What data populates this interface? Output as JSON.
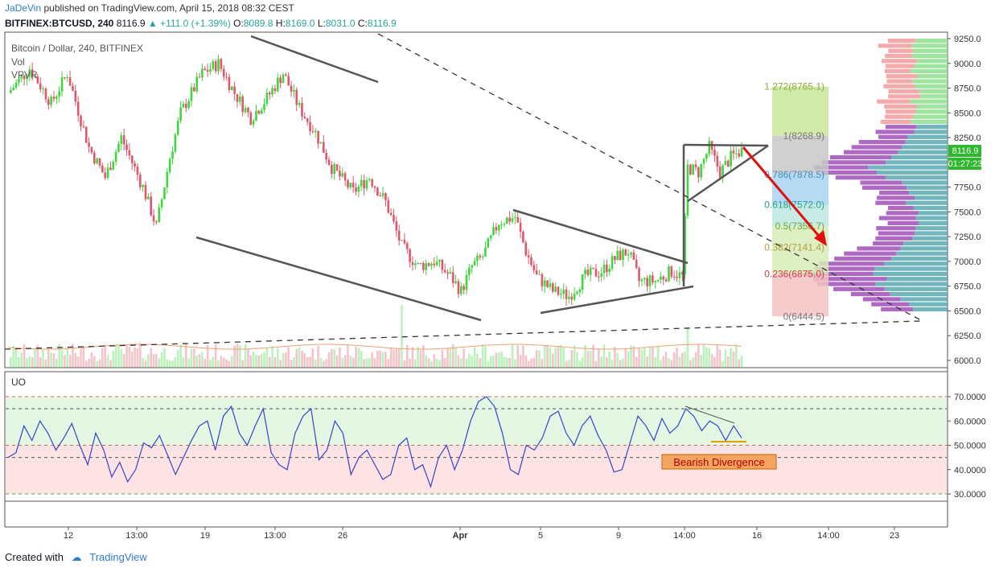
{
  "header": {
    "publisher": "JaDeVin",
    "published_text": "published on TradingView.com, April 15, 2018 08:32 CEST",
    "symbol": "BITFINEX:BTCUSD, 240",
    "last": "8116.9",
    "change": "+111.0 (+1.39%)",
    "o_label": "O:",
    "o": "8089.8",
    "h_label": "H:",
    "h": "8169.0",
    "l_label": "L:",
    "l": "8031.0",
    "c_label": "C:",
    "c": "8116.9"
  },
  "legend": {
    "title": "Bitcoin / Dollar, 240, BITFINEX",
    "vol": "Vol",
    "vpvr": "VPVR",
    "uo": "UO"
  },
  "colors": {
    "up": "#3fd63f",
    "down": "#e0566a",
    "fib_1272": "#c9e69a",
    "fib_1": "#c8c8c8",
    "fib_786": "#a9d3f0",
    "fib_618": "#bfe8e0",
    "fib_382": "#d8ecb8",
    "fib_236": "#f3c2c2",
    "uo_line": "#3344cc",
    "arrow": "#e01010"
  },
  "chart_data": [
    {
      "type": "candlestick",
      "title": "Bitcoin / Dollar, 240, BITFINEX",
      "ylim": [
        6000,
        9250
      ],
      "y_ticks": [
        "9250.0",
        "9000.0",
        "8750.0",
        "8500.0",
        "8250.0",
        "8000.0",
        "7750.0",
        "7500.0",
        "7250.0",
        "7000.0",
        "6750.0",
        "6500.0",
        "6250.0",
        "6000.0"
      ],
      "x_ticks": [
        "12",
        "13:00",
        "19",
        "13:00",
        "26",
        "Apr",
        "5",
        "9",
        "14:00",
        "16",
        "14:00",
        "23"
      ],
      "price_label": "8116.9",
      "countdown_label": "01:27:23",
      "anchors": [
        {
          "t": 0,
          "p": 8700
        },
        {
          "t": 8,
          "p": 8950
        },
        {
          "t": 16,
          "p": 8600
        },
        {
          "t": 22,
          "p": 8900
        },
        {
          "t": 30,
          "p": 8150
        },
        {
          "t": 36,
          "p": 7850
        },
        {
          "t": 42,
          "p": 8250
        },
        {
          "t": 50,
          "p": 7750
        },
        {
          "t": 55,
          "p": 7350
        },
        {
          "t": 60,
          "p": 8050
        },
        {
          "t": 64,
          "p": 8500
        },
        {
          "t": 72,
          "p": 8900
        },
        {
          "t": 78,
          "p": 9000
        },
        {
          "t": 84,
          "p": 8700
        },
        {
          "t": 90,
          "p": 8450
        },
        {
          "t": 96,
          "p": 8650
        },
        {
          "t": 102,
          "p": 8900
        },
        {
          "t": 108,
          "p": 8550
        },
        {
          "t": 114,
          "p": 8300
        },
        {
          "t": 120,
          "p": 7950
        },
        {
          "t": 128,
          "p": 7700
        },
        {
          "t": 134,
          "p": 7850
        },
        {
          "t": 140,
          "p": 7600
        },
        {
          "t": 146,
          "p": 7150
        },
        {
          "t": 152,
          "p": 6950
        },
        {
          "t": 158,
          "p": 7000
        },
        {
          "t": 164,
          "p": 6850
        },
        {
          "t": 168,
          "p": 6700
        },
        {
          "t": 172,
          "p": 6950
        },
        {
          "t": 176,
          "p": 7050
        },
        {
          "t": 182,
          "p": 7400
        },
        {
          "t": 188,
          "p": 7450
        },
        {
          "t": 192,
          "p": 7100
        },
        {
          "t": 196,
          "p": 6850
        },
        {
          "t": 202,
          "p": 6700
        },
        {
          "t": 208,
          "p": 6650
        },
        {
          "t": 214,
          "p": 6850
        },
        {
          "t": 220,
          "p": 6900
        },
        {
          "t": 226,
          "p": 7050
        },
        {
          "t": 230,
          "p": 7100
        },
        {
          "t": 234,
          "p": 6800
        },
        {
          "t": 240,
          "p": 6800
        },
        {
          "t": 246,
          "p": 6900
        },
        {
          "t": 250,
          "p": 6850
        },
        {
          "t": 252,
          "p": 7950
        },
        {
          "t": 256,
          "p": 7900
        },
        {
          "t": 260,
          "p": 8150
        },
        {
          "t": 264,
          "p": 7900
        },
        {
          "t": 268,
          "p": 8050
        },
        {
          "t": 272,
          "p": 8120
        }
      ],
      "fibonacci": [
        {
          "label": "1.272(8765.1)",
          "value": 8765.1
        },
        {
          "label": "1(8268.9)",
          "value": 8268.9
        },
        {
          "label": "0.786(7878.5)",
          "value": 7878.5
        },
        {
          "label": "0.618(7572.0)",
          "value": 7572.0
        },
        {
          "label": "0.5(7356.7)",
          "value": 7356.7
        },
        {
          "label": "0.382(7141.4)",
          "value": 7141.4
        },
        {
          "label": "0.236(6875.0)",
          "value": 6875.0
        },
        {
          "label": "0(6444.5)",
          "value": 6444.5
        }
      ]
    },
    {
      "type": "line",
      "title": "UO",
      "ylim": [
        25,
        75
      ],
      "y_ticks": [
        "70.0000",
        "60.0000",
        "50.0000",
        "40.0000",
        "30.0000"
      ],
      "levels": [
        70,
        65,
        50,
        45,
        30
      ],
      "annotation": "Bearish Divergence",
      "values": [
        45,
        47,
        58,
        52,
        60,
        55,
        48,
        53,
        59,
        50,
        42,
        55,
        48,
        37,
        43,
        35,
        40,
        51,
        49,
        54,
        46,
        38,
        45,
        52,
        58,
        60,
        48,
        62,
        66,
        55,
        50,
        58,
        65,
        47,
        42,
        40,
        55,
        62,
        65,
        44,
        48,
        60,
        55,
        38,
        45,
        48,
        42,
        36,
        38,
        50,
        53,
        40,
        42,
        33,
        45,
        50,
        40,
        48,
        60,
        68,
        70,
        66,
        55,
        40,
        38,
        50,
        48,
        53,
        62,
        64,
        55,
        50,
        58,
        62,
        54,
        48,
        39,
        40,
        51,
        62,
        58,
        52,
        61,
        55,
        58,
        65,
        62,
        56,
        60,
        58,
        52,
        58,
        53
      ]
    }
  ]
}
